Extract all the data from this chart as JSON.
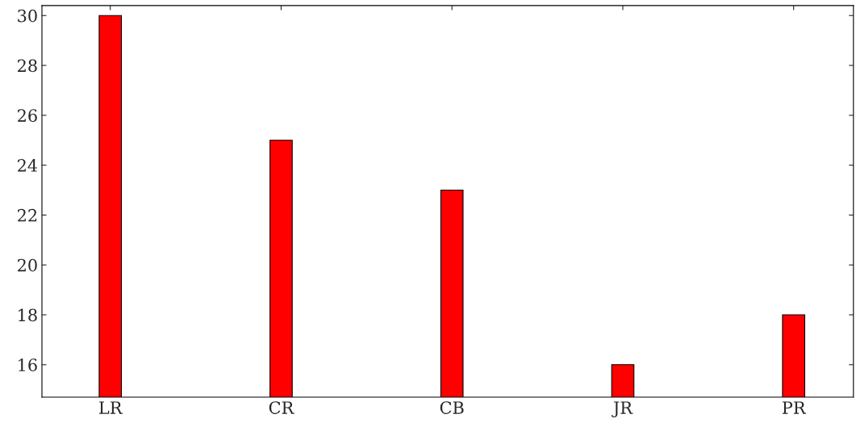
{
  "chart_data": {
    "type": "bar",
    "categories": [
      "LR",
      "CR",
      "CB",
      "JR",
      "PR"
    ],
    "values": [
      30,
      25,
      23,
      16,
      18
    ],
    "color": "#ff0000",
    "ylim": [
      14.7,
      30.4
    ],
    "yticks": [
      16,
      18,
      20,
      22,
      24,
      26,
      28,
      30
    ],
    "grid": false
  }
}
